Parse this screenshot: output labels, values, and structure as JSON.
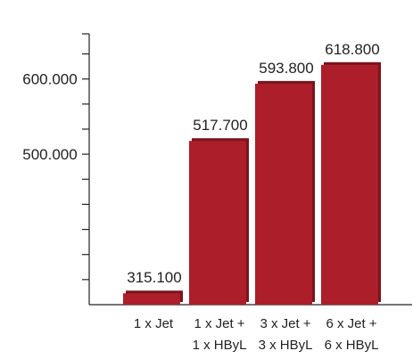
{
  "chart_data": {
    "type": "bar",
    "title": "",
    "xlabel": "",
    "ylabel": "",
    "categories": [
      [
        "1 x Jet"
      ],
      [
        "1 x Jet +",
        "1 x HByL"
      ],
      [
        "3 x Jet +",
        "3 x HByL"
      ],
      [
        "6 x Jet +",
        "6 x HByL"
      ]
    ],
    "values": [
      315100,
      517700,
      593800,
      618800
    ],
    "value_labels": [
      "315.100",
      "517.700",
      "593.800",
      "618.800"
    ],
    "ylim": [
      300000,
      660000
    ],
    "y_tick_labels": [
      {
        "value": 500000,
        "label": "500.000"
      },
      {
        "value": 600000,
        "label": "600.000"
      }
    ],
    "y_minor_step": 33333.333,
    "grid": false,
    "bar_color": "#ac1e2a",
    "bar_shadow_color": "#7a141d"
  }
}
